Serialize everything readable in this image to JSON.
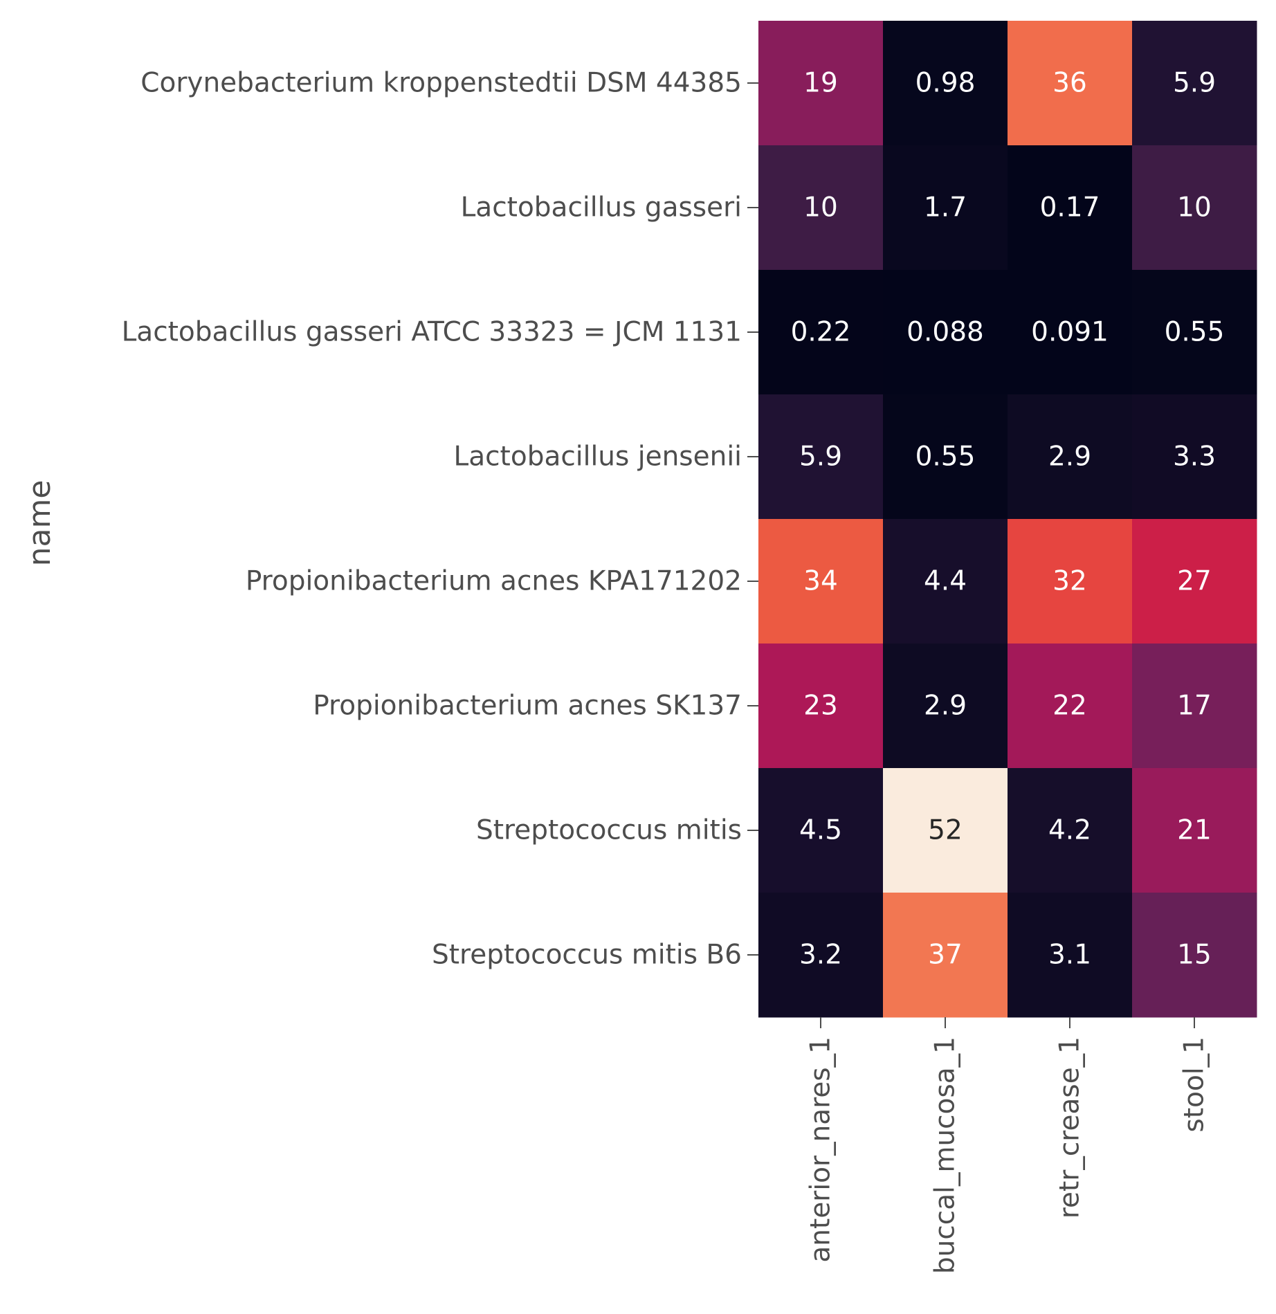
{
  "chart_data": {
    "type": "heatmap",
    "title": "",
    "xlabel": "",
    "ylabel": "name",
    "colormap": "rocket",
    "color_range": [
      0.088,
      52
    ],
    "colorbar": false,
    "rows": [
      "Corynebacterium kroppenstedtii DSM 44385",
      "Lactobacillus gasseri",
      "Lactobacillus gasseri ATCC 33323 = JCM 1131",
      "Lactobacillus jensenii",
      "Propionibacterium acnes KPA171202",
      "Propionibacterium acnes SK137",
      "Streptococcus mitis",
      "Streptococcus mitis B6"
    ],
    "columns": [
      "anterior_nares_1",
      "buccal_mucosa_1",
      "retr_crease_1",
      "stool_1"
    ],
    "values": [
      [
        19,
        0.98,
        36,
        5.9
      ],
      [
        10,
        1.7,
        0.17,
        10
      ],
      [
        0.22,
        0.088,
        0.091,
        0.55
      ],
      [
        5.9,
        0.55,
        2.9,
        3.3
      ],
      [
        34,
        4.4,
        32,
        27
      ],
      [
        23,
        2.9,
        22,
        17
      ],
      [
        4.5,
        52,
        4.2,
        21
      ],
      [
        3.2,
        37,
        3.1,
        15
      ]
    ],
    "value_labels": [
      [
        "19",
        "0.98",
        "36",
        "5.9"
      ],
      [
        "10",
        "1.7",
        "0.17",
        "10"
      ],
      [
        "0.22",
        "0.088",
        "0.091",
        "0.55"
      ],
      [
        "5.9",
        "0.55",
        "2.9",
        "3.3"
      ],
      [
        "34",
        "4.4",
        "32",
        "27"
      ],
      [
        "23",
        "2.9",
        "22",
        "17"
      ],
      [
        "4.5",
        "52",
        "4.2",
        "21"
      ],
      [
        "3.2",
        "37",
        "3.1",
        "15"
      ]
    ]
  }
}
